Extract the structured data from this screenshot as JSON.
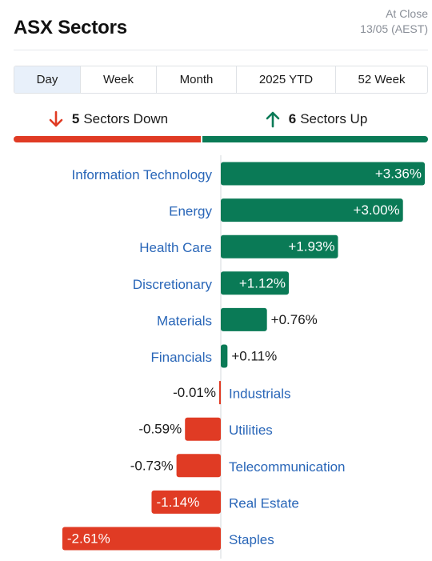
{
  "header": {
    "title": "ASX Sectors",
    "status": "At Close",
    "date": "13/05 (AEST)"
  },
  "tabs": [
    {
      "label": "Day",
      "active": true
    },
    {
      "label": "Week",
      "active": false
    },
    {
      "label": "Month",
      "active": false
    },
    {
      "label": "2025 YTD",
      "active": false
    },
    {
      "label": "52 Week",
      "active": false
    }
  ],
  "summary": {
    "down_count": "5",
    "down_label": "Sectors Down",
    "up_count": "6",
    "up_label": "Sectors Up",
    "down_color": "#e03b24",
    "up_color": "#0a7a56",
    "down_icon": "arrow-down-icon",
    "up_icon": "arrow-up-icon"
  },
  "chart_data": {
    "type": "bar",
    "orientation": "horizontal",
    "categories": [
      "Information Technology",
      "Energy",
      "Health Care",
      "Discretionary",
      "Materials",
      "Financials",
      "Industrials",
      "Utilities",
      "Telecommunication",
      "Real Estate",
      "Staples"
    ],
    "values": [
      3.36,
      3.0,
      1.93,
      1.12,
      0.76,
      0.11,
      -0.01,
      -0.59,
      -0.73,
      -1.14,
      -2.61
    ],
    "value_labels": [
      "+3.36%",
      "+3.00%",
      "+1.93%",
      "+1.12%",
      "+0.76%",
      "+0.11%",
      "-0.01%",
      "-0.59%",
      "-0.73%",
      "-1.14%",
      "-2.61%"
    ],
    "positive_color": "#0a7a56",
    "negative_color": "#e03b24",
    "title": "",
    "xlabel": "",
    "ylabel": "",
    "grid": false
  }
}
